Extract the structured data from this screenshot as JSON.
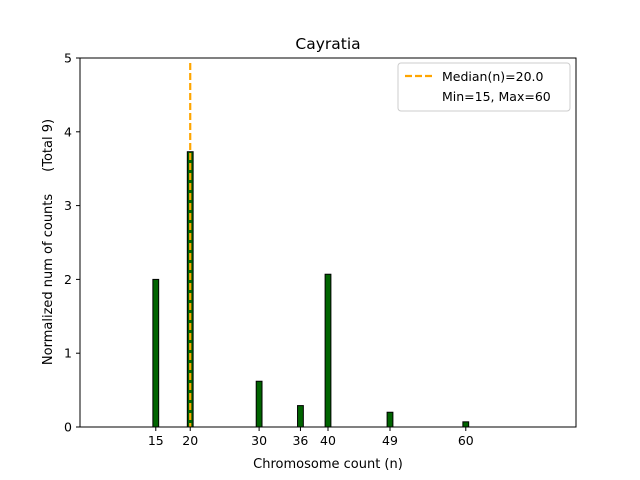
{
  "chart_data": {
    "type": "bar",
    "title": "Cayratia",
    "xlabel": "Chromosome count (n)",
    "ylabel": "Normalized num of counts",
    "ylabel_suffix": "(Total 9)",
    "xlim": [
      4,
      76
    ],
    "ylim": [
      0,
      5
    ],
    "x_ticks": [
      15,
      20,
      30,
      36,
      40,
      49,
      60
    ],
    "y_ticks": [
      0,
      1,
      2,
      3,
      4,
      5
    ],
    "bar_color": "#006400",
    "bar_edge_color": "#000000",
    "bars": [
      {
        "x": 15,
        "value": 2.0
      },
      {
        "x": 20,
        "value": 3.73
      },
      {
        "x": 30,
        "value": 0.62
      },
      {
        "x": 36,
        "value": 0.29
      },
      {
        "x": 40,
        "value": 2.07
      },
      {
        "x": 49,
        "value": 0.2
      },
      {
        "x": 60,
        "value": 0.07
      }
    ],
    "median": {
      "x": 20.0,
      "color": "#FFA500",
      "style": "dashed"
    },
    "legend": {
      "placement": "top-right",
      "entries": [
        "Median(n)=20.0",
        "Min=15, Max=60"
      ]
    },
    "grid": false
  }
}
